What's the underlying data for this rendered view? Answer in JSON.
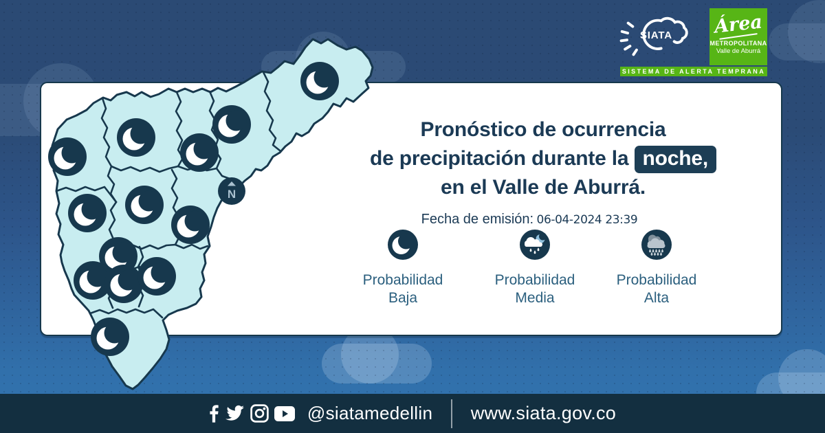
{
  "header": {
    "siata_logo": {
      "name": "SIATA",
      "tagline": "SISTEMA DE ALERTA TEMPRANA"
    },
    "area_logo": {
      "script": "Área",
      "line2": "METROPOLITANA",
      "line3": "Valle de Aburrá"
    }
  },
  "card": {
    "title": {
      "line1": "Pronóstico de ocurrencia",
      "line2_prefix": "de precipitación durante la",
      "highlight": "noche,",
      "line3": "en el Valle de Aburrá."
    },
    "emission": {
      "label": "Fecha de emisión:",
      "datetime": "06-04-2024 23:39"
    }
  },
  "legend": {
    "items": [
      {
        "icon": "moon-icon",
        "line1": "Probabilidad",
        "line2": "Baja"
      },
      {
        "icon": "cloud-drizzle-moon-icon",
        "line1": "Probabilidad",
        "line2": "Media"
      },
      {
        "icon": "cloud-heavy-rain-icon",
        "line1": "Probabilidad",
        "line2": "Alta"
      }
    ]
  },
  "map": {
    "compass_label": "N",
    "forecast_icon": "moon-low-probability",
    "zones_count": 13,
    "moon_positions": [
      [
        465,
        118
      ],
      [
        337,
        181
      ],
      [
        290,
        222
      ],
      [
        198,
        200
      ],
      [
        98,
        228
      ],
      [
        127,
        310
      ],
      [
        210,
        298
      ],
      [
        277,
        327
      ],
      [
        172,
        373
      ],
      [
        135,
        408
      ],
      [
        180,
        413
      ],
      [
        228,
        402
      ],
      [
        160,
        490
      ]
    ]
  },
  "footer": {
    "handle": "@siatamedellin",
    "website": "www.siata.gov.co",
    "social": [
      "facebook",
      "twitter",
      "instagram",
      "youtube"
    ]
  },
  "colors": {
    "navy": "#17384d",
    "card_border": "#16384c",
    "map_fill": "#c8edf0",
    "title_text": "#1b3a55",
    "legend_text": "#2b5f7e",
    "brand_green": "#57b516",
    "footer_bg": "#132f40"
  }
}
